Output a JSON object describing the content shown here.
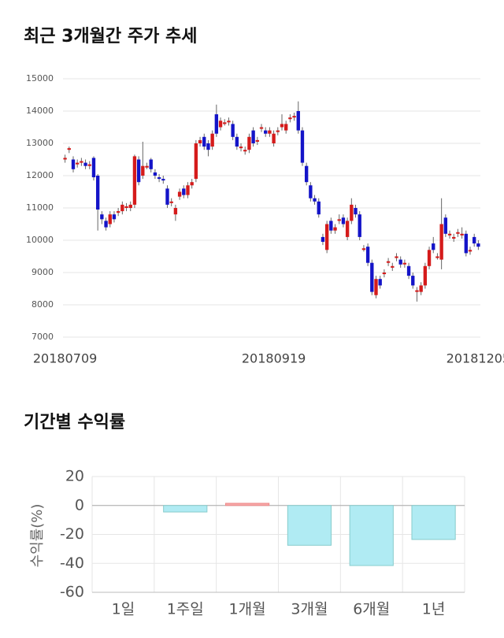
{
  "chart_data": [
    {
      "type": "candlestick",
      "title": "최근 3개월간 주가 추세",
      "categories": [
        "20180709",
        null,
        null,
        null,
        null,
        null,
        null,
        null,
        null,
        null,
        null,
        null,
        null,
        null,
        null,
        null,
        null,
        null,
        null,
        null,
        null,
        null,
        null,
        null,
        null,
        null,
        null,
        null,
        null,
        null,
        null,
        null,
        null,
        null,
        null,
        null,
        null,
        null,
        null,
        null,
        null,
        null,
        null,
        null,
        null,
        null,
        null,
        null,
        null,
        null,
        null,
        "20180919",
        null,
        null,
        null,
        null,
        null,
        null,
        null,
        null,
        null,
        null,
        null,
        null,
        null,
        null,
        null,
        null,
        null,
        null,
        null,
        null,
        null,
        null,
        null,
        null,
        null,
        null,
        null,
        null,
        null,
        null,
        null,
        null,
        null,
        null,
        null,
        null,
        null,
        null,
        null,
        null,
        null,
        null,
        null,
        null,
        null,
        null,
        null,
        null,
        null,
        "20181205"
      ],
      "open": [
        12500,
        12800,
        12500,
        12350,
        12400,
        12400,
        12300,
        12550,
        12000,
        10800,
        10600,
        10500,
        10800,
        10850,
        10900,
        11000,
        11000,
        11100,
        12500,
        12000,
        12250,
        12500,
        12100,
        11950,
        11900,
        11600,
        11150,
        10800,
        11350,
        11600,
        11400,
        11700,
        11900,
        13000,
        13200,
        13000,
        12900,
        13900,
        13500,
        13600,
        13650,
        13600,
        13200,
        12850,
        12750,
        12800,
        13400,
        13050,
        13450,
        13400,
        13300,
        13000,
        13350,
        13500,
        13400,
        13750,
        13800,
        14000,
        13400,
        12300,
        11700,
        11300,
        11200,
        10100,
        9700,
        10600,
        10300,
        10600,
        10700,
        10100,
        10600,
        11000,
        10800,
        9700,
        9800,
        9300,
        8300,
        8800,
        8950,
        9300,
        9150,
        9450,
        9400,
        9250,
        9200,
        8900,
        8400,
        8400,
        8600,
        9200,
        9900,
        9450,
        9400,
        10700,
        10150,
        10050,
        10200,
        10150,
        10200,
        9650,
        10100,
        9900
      ],
      "high": [
        12650,
        12900,
        12600,
        12500,
        12550,
        12500,
        12450,
        12600,
        12050,
        10900,
        10700,
        10900,
        10900,
        11000,
        11200,
        11150,
        11200,
        12650,
        12600,
        13050,
        12400,
        12550,
        12200,
        12050,
        12000,
        11700,
        11300,
        11100,
        11600,
        11700,
        11800,
        11900,
        13100,
        13200,
        13300,
        13100,
        13400,
        14200,
        13800,
        13750,
        13800,
        13700,
        13300,
        13000,
        12900,
        13300,
        13500,
        13200,
        13600,
        13500,
        13500,
        13400,
        13500,
        13900,
        13700,
        13900,
        13950,
        14300,
        13500,
        12400,
        11800,
        11400,
        11300,
        10200,
        10600,
        10700,
        10500,
        10800,
        10800,
        10700,
        11300,
        11100,
        10900,
        9850,
        9900,
        9400,
        8900,
        8900,
        9100,
        9450,
        9300,
        9600,
        9500,
        9400,
        9300,
        9000,
        8550,
        8700,
        9300,
        9800,
        10100,
        9600,
        11300,
        10800,
        10300,
        10200,
        10350,
        10400,
        10300,
        9800,
        10200,
        10000
      ],
      "low": [
        12400,
        12700,
        12100,
        12250,
        12300,
        12200,
        12200,
        11850,
        10300,
        10500,
        10300,
        10400,
        10550,
        10750,
        10800,
        10900,
        10900,
        11000,
        11700,
        11900,
        12200,
        12100,
        11900,
        11800,
        11750,
        11000,
        11050,
        10600,
        11250,
        11300,
        11300,
        11600,
        11800,
        12900,
        12800,
        12600,
        12800,
        13200,
        13400,
        13550,
        13550,
        13100,
        12800,
        12750,
        12650,
        12700,
        12900,
        12950,
        13350,
        13200,
        13200,
        12900,
        13250,
        13400,
        13300,
        13650,
        13700,
        13300,
        12300,
        11700,
        11200,
        11100,
        10700,
        9850,
        9600,
        10200,
        10200,
        10500,
        10400,
        10000,
        10500,
        10700,
        10000,
        9650,
        9200,
        8300,
        8200,
        8500,
        8850,
        9200,
        9050,
        9350,
        9150,
        9150,
        8800,
        8500,
        8100,
        8300,
        8500,
        9100,
        9600,
        9400,
        9100,
        10100,
        10050,
        9950,
        10100,
        10050,
        9500,
        9550,
        9800,
        9700
      ],
      "close": [
        12550,
        12850,
        12200,
        12400,
        12450,
        12300,
        12350,
        11950,
        10950,
        10650,
        10400,
        10800,
        10650,
        10900,
        11100,
        11050,
        11100,
        12600,
        11800,
        12300,
        12300,
        12200,
        12000,
        11900,
        11850,
        11100,
        11200,
        11000,
        11500,
        11400,
        11700,
        11800,
        13000,
        13100,
        12900,
        12800,
        13300,
        13300,
        13700,
        13650,
        13700,
        13200,
        12900,
        12900,
        12800,
        13200,
        13000,
        13100,
        13500,
        13300,
        13400,
        13300,
        13400,
        13600,
        13600,
        13800,
        13850,
        13400,
        12400,
        11800,
        11300,
        11200,
        10800,
        9950,
        10500,
        10300,
        10400,
        10650,
        10500,
        10600,
        11100,
        10800,
        10100,
        9750,
        9300,
        8400,
        8800,
        8600,
        9000,
        9350,
        9200,
        9500,
        9250,
        9300,
        8900,
        8600,
        8450,
        8600,
        9200,
        9700,
        9700,
        9500,
        10500,
        10200,
        10200,
        10100,
        10250,
        10200,
        9600,
        9700,
        9900,
        9800
      ],
      "up_color": "#d51b1b",
      "down_color": "#1414c8",
      "ylim": [
        7000,
        15000
      ],
      "yticks": [
        7000,
        8000,
        9000,
        10000,
        11000,
        12000,
        13000,
        14000,
        15000
      ],
      "grid": true
    },
    {
      "type": "bar",
      "title": "기간별 수익률",
      "y_label": "수익률(%)",
      "categories": [
        "1일",
        "1주일",
        "1개월",
        "3개월",
        "6개월",
        "1년"
      ],
      "values": [
        0,
        -4.5,
        1.5,
        -27.5,
        -41.5,
        -23.5
      ],
      "positive_color": "#f6a9a9",
      "negative_color": "#b0ebf3",
      "ylim": [
        -60,
        20
      ],
      "yticks": [
        -60,
        -40,
        -20,
        0,
        20
      ],
      "grid": true
    }
  ]
}
